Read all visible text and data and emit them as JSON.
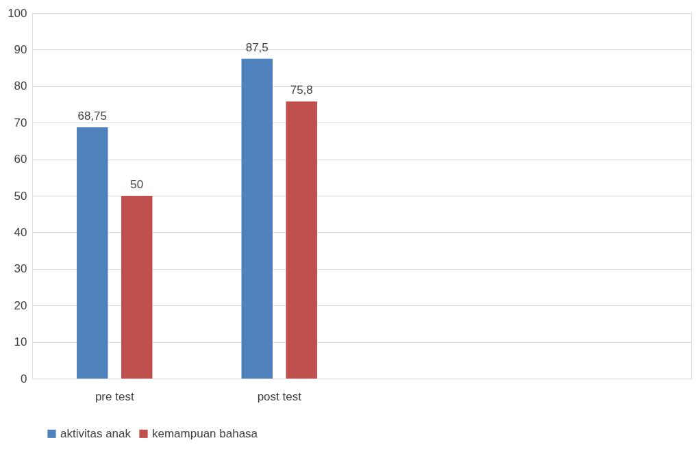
{
  "chart_data": {
    "type": "bar",
    "categories": [
      "pre test",
      "post test",
      null,
      null
    ],
    "series": [
      {
        "name": "aktivitas anak",
        "color": "#4f81bd",
        "values": [
          68.75,
          87.5,
          null,
          null
        ],
        "value_labels": [
          "68,75",
          "87,5",
          null,
          null
        ]
      },
      {
        "name": "kemampuan bahasa",
        "color": "#c0504d",
        "values": [
          50,
          75.8,
          null,
          null
        ],
        "value_labels": [
          "50",
          "75,8",
          null,
          null
        ]
      }
    ],
    "ylim": [
      0,
      100
    ],
    "yticks": [
      0,
      10,
      20,
      30,
      40,
      50,
      60,
      70,
      80,
      90,
      100
    ],
    "grid": "y",
    "legend": "bottom"
  }
}
